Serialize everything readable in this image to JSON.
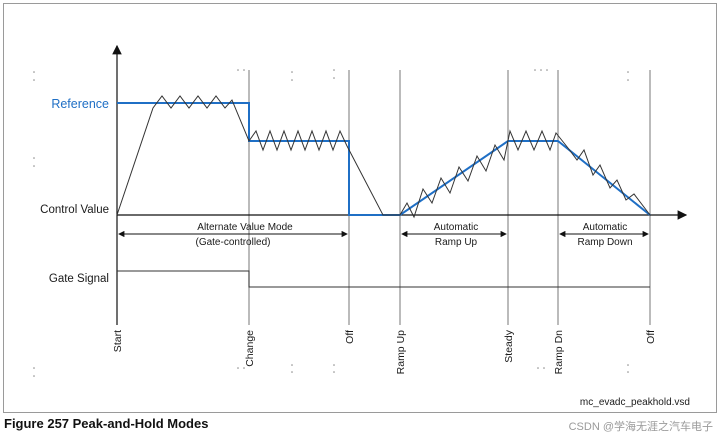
{
  "diagram": {
    "y_labels": {
      "reference": "Reference",
      "control_value": "Control Value",
      "gate_signal": "Gate Signal"
    },
    "phase_labels": {
      "alternate_line1": "Alternate Value Mode",
      "alternate_line2": "(Gate-controlled)",
      "ramp_up_line1": "Automatic",
      "ramp_up_line2": "Ramp Up",
      "ramp_down_line1": "Automatic",
      "ramp_down_line2": "Ramp Down"
    },
    "time_markers": [
      "Start",
      "Change",
      "Off",
      "Ramp Up",
      "Steady",
      "Ramp Dn",
      "Off"
    ],
    "file_label": "mc_evadc_peakhold.vsd",
    "colors": {
      "reference": "#1f6fc5",
      "curve": "#333333",
      "axis": "#111111"
    }
  },
  "caption": "Figure 257   Peak-and-Hold Modes",
  "watermark": "CSDN @学海无涯之汽车电子"
}
